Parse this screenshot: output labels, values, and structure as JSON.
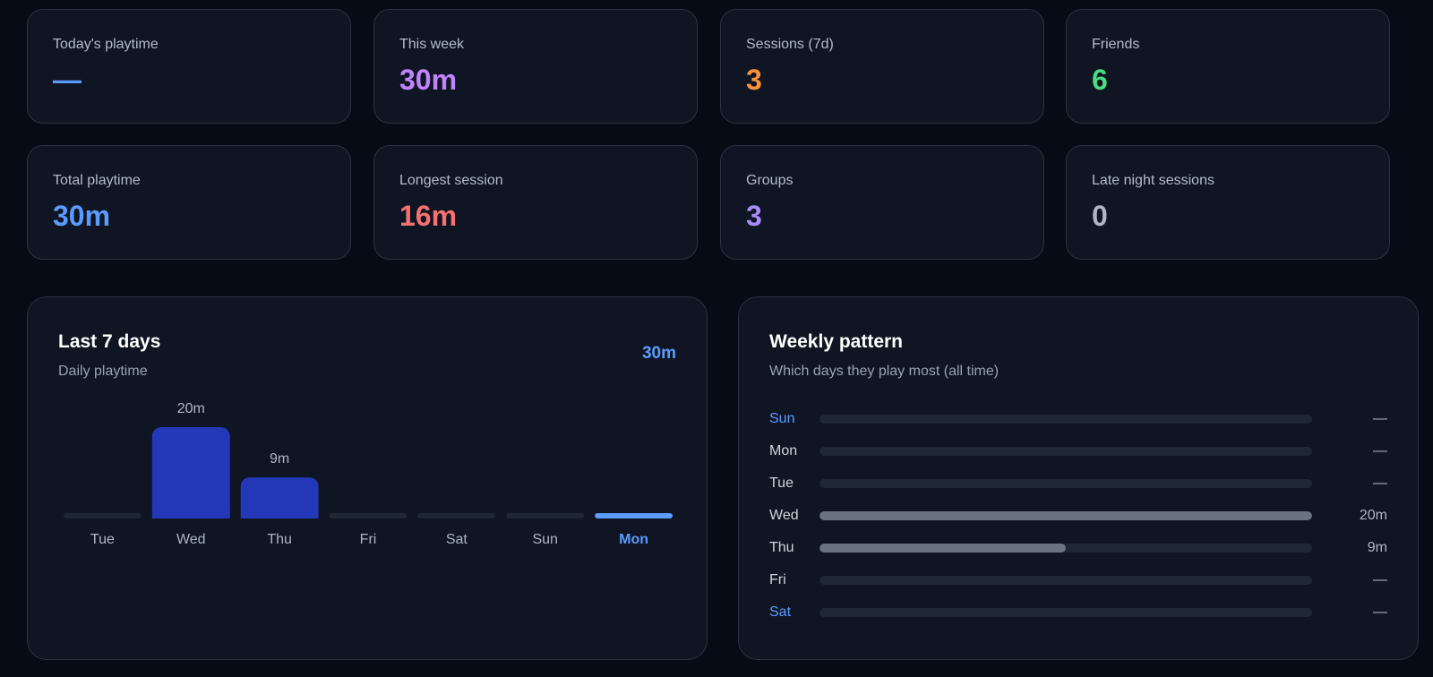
{
  "stats": [
    {
      "label": "Today's playtime",
      "value": "—",
      "color": "#5a9bff"
    },
    {
      "label": "This week",
      "value": "30m",
      "color": "#c084fc"
    },
    {
      "label": "Sessions (7d)",
      "value": "3",
      "color": "#fb923c"
    },
    {
      "label": "Friends",
      "value": "6",
      "color": "#4ade80"
    },
    {
      "label": "Total playtime",
      "value": "30m",
      "color": "#5a9bff"
    },
    {
      "label": "Longest session",
      "value": "16m",
      "color": "#f87171"
    },
    {
      "label": "Groups",
      "value": "3",
      "color": "#a78bfa"
    },
    {
      "label": "Late night sessions",
      "value": "0",
      "color": "#aeb6c3"
    }
  ],
  "last7": {
    "title": "Last 7 days",
    "subtitle": "Daily playtime",
    "total": "30m"
  },
  "weekly": {
    "title": "Weekly pattern",
    "subtitle": "Which days they play most (all time)",
    "rows": [
      {
        "day": "Sun",
        "value": "—",
        "fraction": 0,
        "highlight": true
      },
      {
        "day": "Mon",
        "value": "—",
        "fraction": 0,
        "highlight": false
      },
      {
        "day": "Tue",
        "value": "—",
        "fraction": 0,
        "highlight": false
      },
      {
        "day": "Wed",
        "value": "20m",
        "fraction": 1.0,
        "highlight": false
      },
      {
        "day": "Thu",
        "value": "9m",
        "fraction": 0.5,
        "highlight": false
      },
      {
        "day": "Fri",
        "value": "—",
        "fraction": 0,
        "highlight": false
      },
      {
        "day": "Sat",
        "value": "—",
        "fraction": 0,
        "highlight": true
      }
    ]
  },
  "colors": {
    "bar": "#2238b8",
    "bar_today": "#5a9bff",
    "bar_empty": "#1f2734",
    "label": "#aeb6c3",
    "label_today": "#5a9bff",
    "value_label": "#aeb6c3",
    "weekend": "#5a9bff",
    "weekday": "#d1d5db"
  },
  "chart_data": {
    "type": "bar",
    "categories": [
      "Tue",
      "Wed",
      "Thu",
      "Fri",
      "Sat",
      "Sun",
      "Mon"
    ],
    "values": [
      0,
      20,
      9,
      0,
      0,
      0,
      0
    ],
    "value_labels": [
      "",
      "20m",
      "9m",
      "",
      "",
      "",
      ""
    ],
    "highlight_category": "Mon",
    "ylim": [
      0,
      20
    ],
    "grid": false,
    "legend": "none"
  }
}
